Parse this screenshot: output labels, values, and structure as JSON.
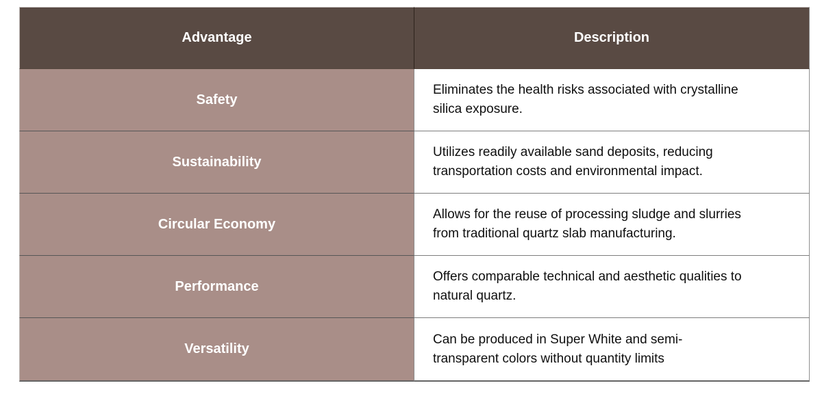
{
  "colors": {
    "page_background": "#ffffff",
    "header_background": "#594a43",
    "header_text": "#ffffff",
    "advantage_cell_background": "#a98e88",
    "advantage_cell_text": "#ffffff",
    "description_cell_background": "#ffffff",
    "description_cell_text": "#0f0f0f",
    "grid_line": "#6e6e6e"
  },
  "table": {
    "columns": [
      {
        "label": "Advantage"
      },
      {
        "label": "Description"
      }
    ],
    "rows": [
      {
        "advantage": "Safety",
        "description": "Eliminates the health risks associated with crystalline\nsilica exposure."
      },
      {
        "advantage": "Sustainability",
        "description": "Utilizes readily available sand deposits, reducing\ntransportation costs and environmental impact."
      },
      {
        "advantage": "Circular Economy",
        "description": "Allows for the reuse of processing sludge and slurries\nfrom traditional quartz slab manufacturing."
      },
      {
        "advantage": "Performance",
        "description": "Offers comparable technical and aesthetic qualities to\nnatural quartz."
      },
      {
        "advantage": "Versatility",
        "description": "Can be produced in Super White and semi-\ntransparent colors without quantity limits"
      }
    ]
  },
  "chart_data": {
    "type": "table",
    "columns": [
      "Advantage",
      "Description"
    ],
    "rows": [
      [
        "Safety",
        "Eliminates the health risks associated with crystalline silica exposure."
      ],
      [
        "Sustainability",
        "Utilizes readily available sand deposits, reducing transportation costs and environmental impact."
      ],
      [
        "Circular Economy",
        "Allows for the reuse of processing sludge and slurries from traditional quartz slab manufacturing."
      ],
      [
        "Performance",
        "Offers comparable technical and aesthetic qualities to natural quartz."
      ],
      [
        "Versatility",
        "Can be produced in Super White and semi-transparent colors without quantity limits"
      ]
    ]
  }
}
